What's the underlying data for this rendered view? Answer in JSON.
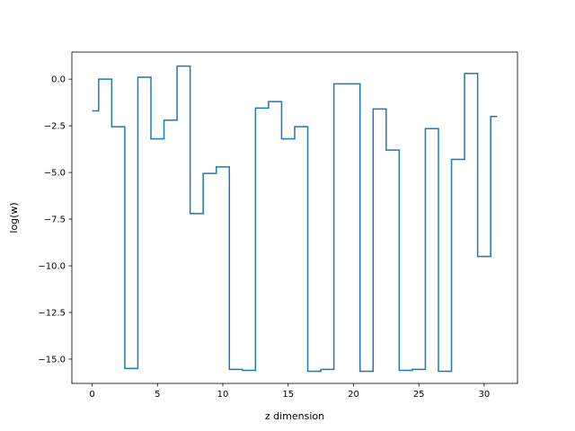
{
  "chart_data": {
    "type": "line",
    "step": "mid",
    "title": "",
    "xlabel": "z dimension",
    "ylabel": "log(w)",
    "xlim": [
      -1.55,
      32.55
    ],
    "ylim": [
      -16.3,
      1.45
    ],
    "grid": false,
    "xticks": [
      0,
      5,
      10,
      15,
      20,
      25,
      30
    ],
    "yticks": [
      0.0,
      -2.5,
      -5.0,
      -7.5,
      -10.0,
      -12.5,
      -15.0
    ],
    "xtick_labels": [
      "0",
      "5",
      "10",
      "15",
      "20",
      "25",
      "30"
    ],
    "ytick_labels": [
      "0.0",
      "−2.5",
      "−5.0",
      "−7.5",
      "−10.0",
      "−12.5",
      "−15.0"
    ],
    "series": [
      {
        "color": "#1f77b4",
        "x": [
          0,
          1,
          2,
          3,
          4,
          5,
          6,
          7,
          8,
          9,
          10,
          11,
          12,
          13,
          14,
          15,
          16,
          17,
          18,
          19,
          20,
          21,
          22,
          23,
          24,
          25,
          26,
          27,
          28,
          29,
          30,
          31
        ],
        "y": [
          -1.7,
          0.0,
          -2.55,
          -15.5,
          0.1,
          -3.2,
          -2.2,
          0.7,
          -7.2,
          -5.05,
          -4.7,
          -15.55,
          -15.6,
          -1.55,
          -1.2,
          -3.2,
          -2.55,
          -15.65,
          -15.55,
          -0.25,
          -0.25,
          -15.65,
          -1.6,
          -3.8,
          -15.6,
          -15.55,
          -2.65,
          -15.65,
          -4.3,
          0.3,
          -9.5,
          -2.0
        ]
      }
    ]
  }
}
